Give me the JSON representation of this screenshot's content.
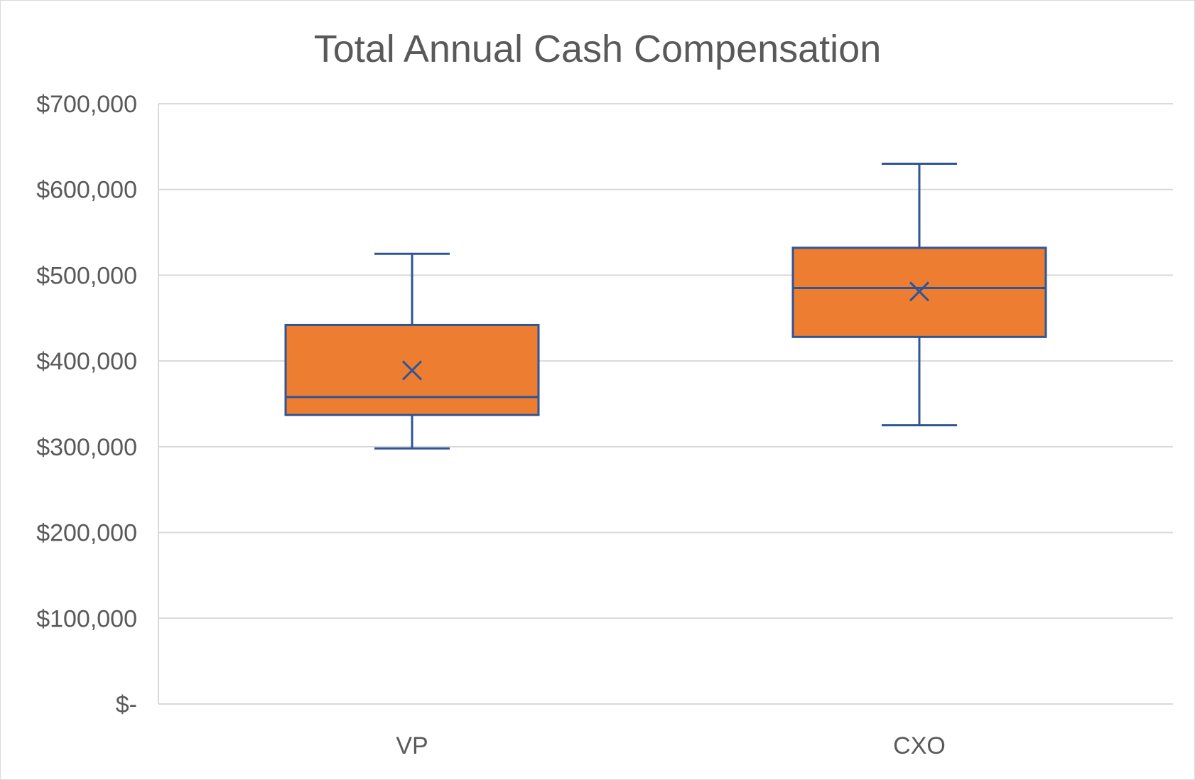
{
  "chart_data": {
    "type": "boxplot",
    "title": "Total Annual Cash Compensation",
    "xlabel": "",
    "ylabel": "",
    "ylim": [
      0,
      700000
    ],
    "yticks": [
      0,
      100000,
      200000,
      300000,
      400000,
      500000,
      600000,
      700000
    ],
    "ytick_labels": [
      "$-",
      "$100,000",
      "$200,000",
      "$300,000",
      "$400,000",
      "$500,000",
      "$600,000",
      "$700,000"
    ],
    "categories": [
      "VP",
      "CXO"
    ],
    "boxes": [
      {
        "category": "VP",
        "min": 298000,
        "q1": 337000,
        "median": 358000,
        "q3": 442000,
        "max": 525000,
        "mean": 389000
      },
      {
        "category": "CXO",
        "min": 325000,
        "q1": 428000,
        "median": 485000,
        "q3": 532000,
        "max": 630000,
        "mean": 481000
      }
    ],
    "grid": true,
    "legend": "none",
    "colors": {
      "box_fill": "#ED7D31",
      "box_stroke": "#2F5597",
      "grid": "#D9D9D9",
      "text": "#595959"
    }
  }
}
